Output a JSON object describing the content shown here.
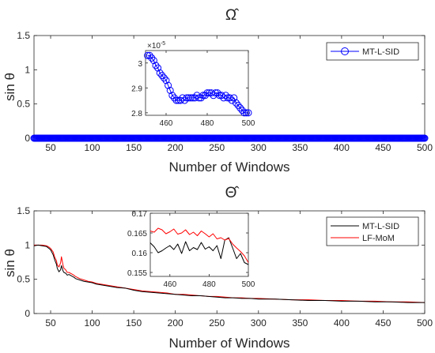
{
  "chart_data": [
    {
      "type": "scatter",
      "title": "Ω̂",
      "xlabel": "Number of Windows",
      "ylabel": "sin θ",
      "xlim": [
        30,
        500
      ],
      "ylim": [
        0,
        1.5
      ],
      "xticks": [
        "50",
        "100",
        "150",
        "200",
        "250",
        "300",
        "350",
        "400",
        "450",
        "500"
      ],
      "yticks": [
        "0",
        "0.5",
        "1",
        "1.5"
      ],
      "legend": {
        "placement": "top-right",
        "entries": [
          "MT-L-SID"
        ]
      },
      "series": [
        {
          "name": "MT-L-SID",
          "color": "#0000ff",
          "marker": "circle",
          "x_range": [
            30,
            500
          ],
          "value": 3e-05
        }
      ],
      "inset": {
        "exponent_label": "×10",
        "exponent_power": "-5",
        "xlim": [
          450,
          500
        ],
        "ylim": [
          2.79,
          3.05
        ],
        "xticks": [
          "460",
          "480",
          "500"
        ],
        "yticks": [
          "2.8",
          "2.9",
          "3"
        ],
        "x": [
          451,
          452,
          453,
          454,
          455,
          456,
          457,
          458,
          459,
          460,
          461,
          462,
          463,
          464,
          465,
          466,
          467,
          468,
          469,
          470,
          471,
          472,
          473,
          474,
          475,
          476,
          477,
          478,
          479,
          480,
          481,
          482,
          483,
          484,
          485,
          486,
          487,
          488,
          489,
          490,
          491,
          492,
          493,
          494,
          495,
          496,
          497,
          498,
          499,
          500
        ],
        "values": [
          3.03,
          3.03,
          3.02,
          3.01,
          2.99,
          2.98,
          2.96,
          2.95,
          2.94,
          2.93,
          2.91,
          2.89,
          2.87,
          2.86,
          2.85,
          2.85,
          2.85,
          2.86,
          2.85,
          2.86,
          2.86,
          2.86,
          2.86,
          2.86,
          2.87,
          2.86,
          2.86,
          2.87,
          2.87,
          2.88,
          2.88,
          2.88,
          2.87,
          2.88,
          2.88,
          2.87,
          2.87,
          2.86,
          2.87,
          2.86,
          2.86,
          2.85,
          2.86,
          2.84,
          2.83,
          2.82,
          2.81,
          2.8,
          2.8,
          2.8
        ]
      }
    },
    {
      "type": "line",
      "title": "Θ̂",
      "xlabel": "Number of Windows",
      "ylabel": "sin θ",
      "xlim": [
        30,
        500
      ],
      "ylim": [
        0,
        1.5
      ],
      "xticks": [
        "50",
        "100",
        "150",
        "200",
        "250",
        "300",
        "350",
        "400",
        "450",
        "500"
      ],
      "yticks": [
        "0",
        "0.5",
        "1",
        "1.5"
      ],
      "legend": {
        "placement": "top-right",
        "entries": [
          "MT-L-SID",
          "LF-MoM"
        ]
      },
      "series": [
        {
          "name": "MT-L-SID",
          "color": "#000000",
          "x": [
            30,
            35,
            40,
            45,
            48,
            50,
            53,
            55,
            57,
            58,
            60,
            62,
            63,
            65,
            66,
            68,
            70,
            72,
            75,
            78,
            80,
            85,
            90,
            95,
            100,
            105,
            110,
            115,
            120,
            125,
            130,
            140,
            150,
            160,
            170,
            180,
            190,
            200,
            210,
            220,
            230,
            240,
            250,
            260,
            270,
            280,
            290,
            300,
            320,
            340,
            360,
            380,
            400,
            420,
            440,
            460,
            480,
            500
          ],
          "values": [
            0.99,
            1.0,
            0.99,
            0.98,
            0.95,
            0.93,
            0.86,
            0.78,
            0.72,
            0.66,
            0.61,
            0.64,
            0.7,
            0.62,
            0.6,
            0.59,
            0.56,
            0.57,
            0.55,
            0.53,
            0.51,
            0.49,
            0.47,
            0.46,
            0.45,
            0.43,
            0.42,
            0.41,
            0.4,
            0.39,
            0.38,
            0.37,
            0.34,
            0.32,
            0.31,
            0.3,
            0.29,
            0.28,
            0.27,
            0.26,
            0.26,
            0.25,
            0.24,
            0.23,
            0.23,
            0.22,
            0.22,
            0.21,
            0.21,
            0.2,
            0.19,
            0.19,
            0.18,
            0.18,
            0.17,
            0.17,
            0.16,
            0.16
          ]
        },
        {
          "name": "LF-MoM",
          "color": "#ff0000",
          "x": [
            30,
            35,
            40,
            45,
            48,
            50,
            53,
            55,
            57,
            58,
            60,
            62,
            63,
            65,
            66,
            68,
            70,
            72,
            75,
            78,
            80,
            85,
            90,
            95,
            100,
            105,
            110,
            115,
            120,
            125,
            130,
            140,
            150,
            160,
            170,
            180,
            190,
            200,
            210,
            220,
            230,
            240,
            250,
            260,
            270,
            280,
            290,
            300,
            320,
            340,
            360,
            380,
            400,
            420,
            440,
            460,
            480,
            500
          ],
          "values": [
            1.0,
            1.0,
            1.0,
            0.99,
            0.97,
            0.95,
            0.9,
            0.82,
            0.77,
            0.71,
            0.68,
            0.74,
            0.83,
            0.7,
            0.66,
            0.64,
            0.6,
            0.6,
            0.58,
            0.56,
            0.54,
            0.51,
            0.49,
            0.47,
            0.46,
            0.44,
            0.43,
            0.42,
            0.41,
            0.4,
            0.39,
            0.37,
            0.35,
            0.33,
            0.32,
            0.31,
            0.3,
            0.28,
            0.28,
            0.27,
            0.26,
            0.25,
            0.25,
            0.24,
            0.23,
            0.23,
            0.22,
            0.22,
            0.21,
            0.2,
            0.2,
            0.19,
            0.19,
            0.18,
            0.18,
            0.17,
            0.17,
            0.16
          ]
        }
      ],
      "inset": {
        "xlim": [
          450,
          500
        ],
        "ylim": [
          0.154,
          0.17
        ],
        "xticks": [
          "460",
          "480",
          "500"
        ],
        "yticks": [
          "0.155",
          "0.16",
          "0.165",
          "0.17"
        ],
        "series": [
          {
            "name": "MT-L-SID",
            "color": "#000000",
            "x": [
              450,
              452,
              454,
              456,
              458,
              460,
              462,
              464,
              466,
              468,
              470,
              472,
              474,
              476,
              478,
              480,
              482,
              484,
              486,
              488,
              490,
              492,
              494,
              496,
              498,
              500
            ],
            "values": [
              0.1625,
              0.1615,
              0.16,
              0.1605,
              0.1612,
              0.1618,
              0.1608,
              0.1622,
              0.1598,
              0.1628,
              0.1605,
              0.1613,
              0.1608,
              0.1626,
              0.1609,
              0.1615,
              0.1605,
              0.1618,
              0.1585,
              0.1632,
              0.1638,
              0.1612,
              0.1585,
              0.1598,
              0.1575,
              0.157
            ]
          },
          {
            "name": "LF-MoM",
            "color": "#ff0000",
            "x": [
              450,
              452,
              454,
              456,
              458,
              460,
              462,
              464,
              466,
              468,
              470,
              472,
              474,
              476,
              478,
              480,
              482,
              484,
              486,
              488,
              490,
              492,
              494,
              496,
              498,
              500
            ],
            "values": [
              0.1655,
              0.1652,
              0.1662,
              0.1658,
              0.1648,
              0.1653,
              0.166,
              0.1647,
              0.165,
              0.1658,
              0.1646,
              0.1652,
              0.1643,
              0.1655,
              0.1648,
              0.164,
              0.1648,
              0.1635,
              0.1638,
              0.1632,
              0.1636,
              0.1622,
              0.1612,
              0.1603,
              0.1592,
              0.1575
            ]
          }
        ]
      }
    }
  ]
}
